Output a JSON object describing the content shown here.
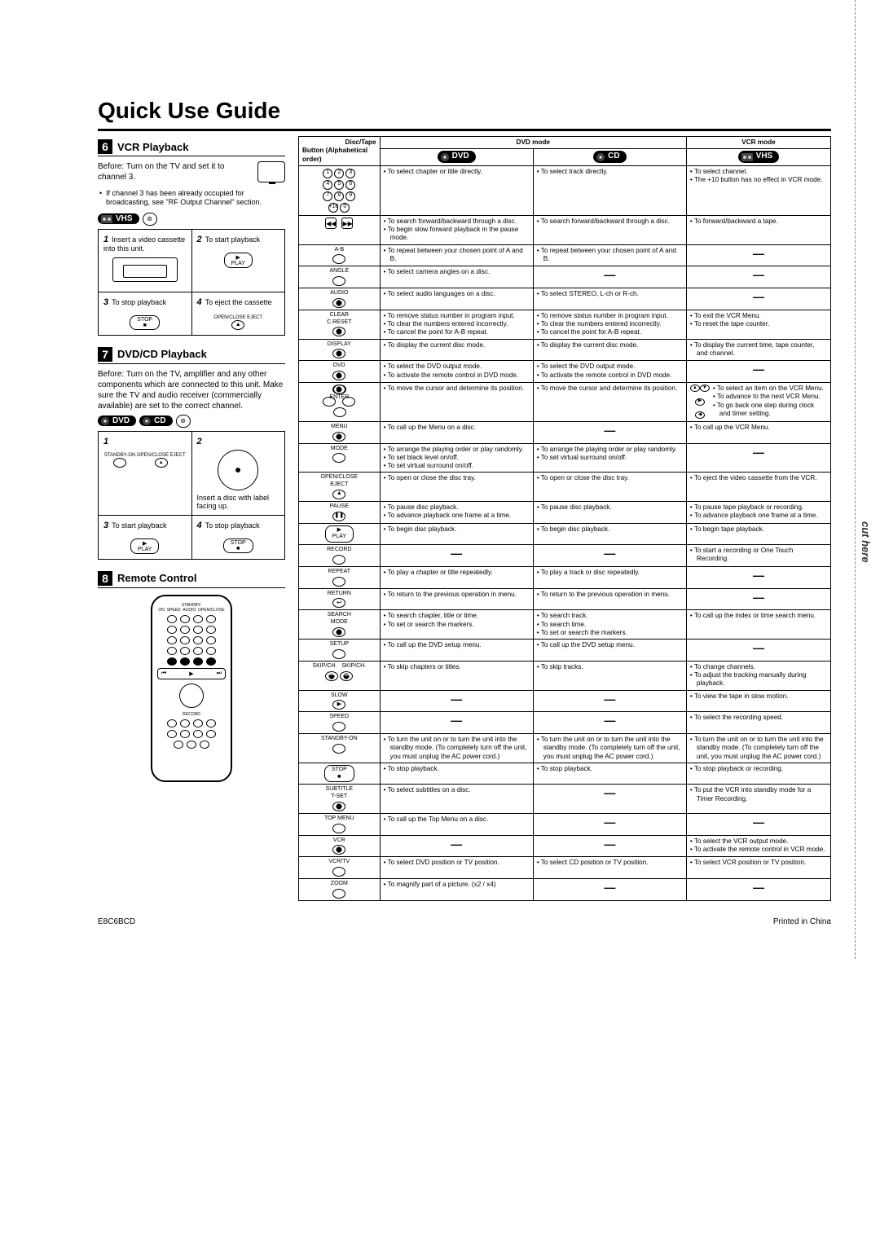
{
  "title": "Quick Use Guide",
  "cut_here": "cut here",
  "footer_left": "E8C6BCD",
  "footer_right": "Printed in China",
  "sec6": {
    "num": "6",
    "title": "VCR Playback",
    "before": "Before: Turn on the TV and set it to channel 3.",
    "note": "If channel 3 has been already occupied for broadcasting, see \"RF Output Channel\" section.",
    "badge": "VHS",
    "step1": "Insert a video cassette into this unit.",
    "step2": "To start playback",
    "step2_btn": "PLAY",
    "step3": "To stop playback",
    "step3_btn": "STOP",
    "step4": "To eject the cassette",
    "step4_label": "OPEN/CLOSE EJECT"
  },
  "sec7": {
    "num": "7",
    "title": "DVD/CD Playback",
    "before": "Before: Turn on the TV, amplifier and any other components which are connected to this unit. Make sure the TV and audio receiver (commercially available) are set to the correct channel.",
    "badge_dvd": "DVD",
    "badge_cd": "CD",
    "step1_label": "STANDBY-ON",
    "step1_label2": "OPEN/CLOSE EJECT",
    "step2": "Insert a disc with label facing up.",
    "step3": "To start playback",
    "step3_btn": "PLAY",
    "step4": "To stop playback",
    "step4_btn": "STOP"
  },
  "sec8": {
    "num": "8",
    "title": "Remote Control"
  },
  "table": {
    "head_dvdmode": "DVD mode",
    "head_vcrmode": "VCR mode",
    "head_btn1": "Disc/Tape",
    "head_btn2": "Button (Alphabetical order)",
    "badge_dvd": "DVD",
    "badge_cd": "CD",
    "badge_vhs": "VHS",
    "rows": [
      {
        "btn": "numbers",
        "dvd": [
          "To select chapter or title directly."
        ],
        "cd": [
          "To select track directly."
        ],
        "vcr": [
          "To select channel.",
          "The +10 button has no effect in VCR mode."
        ]
      },
      {
        "btn": "rew-fwd",
        "dvd": [
          "To search forward/backward through a disc.",
          "To begin slow forward playback in the pause mode."
        ],
        "cd": [
          "To search forward/backward through a disc."
        ],
        "vcr": [
          "To forward/backward a tape."
        ]
      },
      {
        "btn": "A-B",
        "dvd": [
          "To repeat between your chosen point of A and B."
        ],
        "cd": [
          "To repeat between your chosen point of A and B."
        ],
        "vcr": []
      },
      {
        "btn": "ANGLE",
        "dvd": [
          "To select camera angles on a disc."
        ],
        "cd": [],
        "vcr": []
      },
      {
        "btn": "AUDIO",
        "dvd": [
          "To select audio languages on a disc."
        ],
        "cd": [
          "To select STEREO, L-ch or R-ch."
        ],
        "vcr": []
      },
      {
        "btn": "CLEAR / C.RESET",
        "dvd": [
          "To remove status number in program input.",
          "To clear the numbers entered incorrectly.",
          "To cancel the point for A-B repeat."
        ],
        "cd": [
          "To remove status number in program input.",
          "To clear the numbers entered incorrectly.",
          "To cancel the point for A-B repeat."
        ],
        "vcr": [
          "To exit the VCR Menu.",
          "To reset the tape counter."
        ]
      },
      {
        "btn": "DISPLAY",
        "dvd": [
          "To display the current disc mode."
        ],
        "cd": [
          "To display the current disc mode."
        ],
        "vcr": [
          "To display the current time, tape counter, and channel."
        ]
      },
      {
        "btn": "DVD",
        "dvd": [
          "To select the DVD output mode.",
          "To activate the remote control in DVD mode."
        ],
        "cd": [
          "To select the DVD output mode.",
          "To activate the remote control in DVD mode."
        ],
        "vcr": []
      },
      {
        "btn": "ENTER-arrows",
        "dvd": [
          "To move the cursor and determine its position."
        ],
        "cd": [
          "To move the cursor and determine its position."
        ],
        "vcr": [
          "To select an item on the VCR Menu.",
          "To advance to the next VCR Menu.",
          "To go back one step during clock and timer setting."
        ]
      },
      {
        "btn": "MENU",
        "dvd": [
          "To call up the Menu on a disc."
        ],
        "cd": [],
        "vcr": [
          "To call up the VCR Menu."
        ]
      },
      {
        "btn": "MODE",
        "dvd": [
          "To arrange the playing order or play randomly.",
          "To set black level on/off.",
          "To set virtual surround on/off."
        ],
        "cd": [
          "To arrange the playing order or play randomly.",
          "To set virtual surround on/off."
        ],
        "vcr": []
      },
      {
        "btn": "OPEN/CLOSE EJECT",
        "dvd": [
          "To open or close the disc tray."
        ],
        "cd": [
          "To open or close the disc tray."
        ],
        "vcr": [
          "To eject the video cassette from the VCR."
        ]
      },
      {
        "btn": "PAUSE",
        "dvd": [
          "To pause disc playback.",
          "To advance playback one frame at a time."
        ],
        "cd": [
          "To pause disc playback."
        ],
        "vcr": [
          "To pause tape playback or recording.",
          "To advance playback one frame at a time."
        ]
      },
      {
        "btn": "PLAY",
        "dvd": [
          "To begin disc playback."
        ],
        "cd": [
          "To begin disc playback."
        ],
        "vcr": [
          "To begin tape playback."
        ]
      },
      {
        "btn": "RECORD",
        "dvd": [],
        "cd": [],
        "vcr": [
          "To start a recording or One Touch Recording."
        ]
      },
      {
        "btn": "REPEAT",
        "dvd": [
          "To play a chapter or title repeatedly."
        ],
        "cd": [
          "To play a track or disc repeatedly."
        ],
        "vcr": []
      },
      {
        "btn": "RETURN",
        "dvd": [
          "To return to the previous operation in menu."
        ],
        "cd": [
          "To return to the previous operation in menu."
        ],
        "vcr": []
      },
      {
        "btn": "SEARCH MODE",
        "dvd": [
          "To search chapter, title or time.",
          "To set or search the markers."
        ],
        "cd": [
          "To search track.",
          "To search time.",
          "To set or search the markers."
        ],
        "vcr": [
          "To call up the index or time search menu."
        ]
      },
      {
        "btn": "SETUP",
        "dvd": [
          "To call up the DVD setup menu."
        ],
        "cd": [
          "To call up the DVD setup menu."
        ],
        "vcr": []
      },
      {
        "btn": "SKIP/CH.",
        "dvd": [
          "To skip chapters or titles."
        ],
        "cd": [
          "To skip tracks."
        ],
        "vcr": [
          "To change channels.",
          "To adjust the tracking manually during playback."
        ]
      },
      {
        "btn": "SLOW",
        "dvd": [],
        "cd": [],
        "vcr": [
          "To view the tape in slow motion."
        ]
      },
      {
        "btn": "SPEED",
        "dvd": [],
        "cd": [],
        "vcr": [
          "To select the recording speed."
        ]
      },
      {
        "btn": "STANDBY-ON",
        "dvd": [
          "To turn the unit on or to turn the unit into the standby mode. (To completely turn off the unit, you must unplug the AC power cord.)"
        ],
        "cd": [
          "To turn the unit on or to turn the unit into the standby mode. (To completely turn off the unit, you must unplug the AC power cord.)"
        ],
        "vcr": [
          "To turn the unit on or to turn the unit into the standby mode. (To completely turn off the unit, you must unplug the AC power cord.)"
        ]
      },
      {
        "btn": "STOP",
        "dvd": [
          "To stop playback."
        ],
        "cd": [
          "To stop playback."
        ],
        "vcr": [
          "To stop playback or recording."
        ]
      },
      {
        "btn": "SUBTITLE T-SET",
        "dvd": [
          "To select subtitles on a disc."
        ],
        "cd": [],
        "vcr": [
          "To put the VCR into standby mode for a Timer Recording."
        ]
      },
      {
        "btn": "TOP MENU",
        "dvd": [
          "To call up the Top Menu on a disc."
        ],
        "cd": [],
        "vcr": []
      },
      {
        "btn": "VCR",
        "dvd": [],
        "cd": [],
        "vcr": [
          "To select the VCR output mode.",
          "To activate the remote control in VCR mode."
        ]
      },
      {
        "btn": "VCR/TV",
        "dvd": [
          "To select DVD position or TV position."
        ],
        "cd": [
          "To select CD position or TV position."
        ],
        "vcr": [
          "To select VCR position or TV position."
        ]
      },
      {
        "btn": "ZOOM",
        "dvd": [
          "To magnify part of a picture. (x2 / x4)"
        ],
        "cd": [],
        "vcr": []
      }
    ]
  }
}
